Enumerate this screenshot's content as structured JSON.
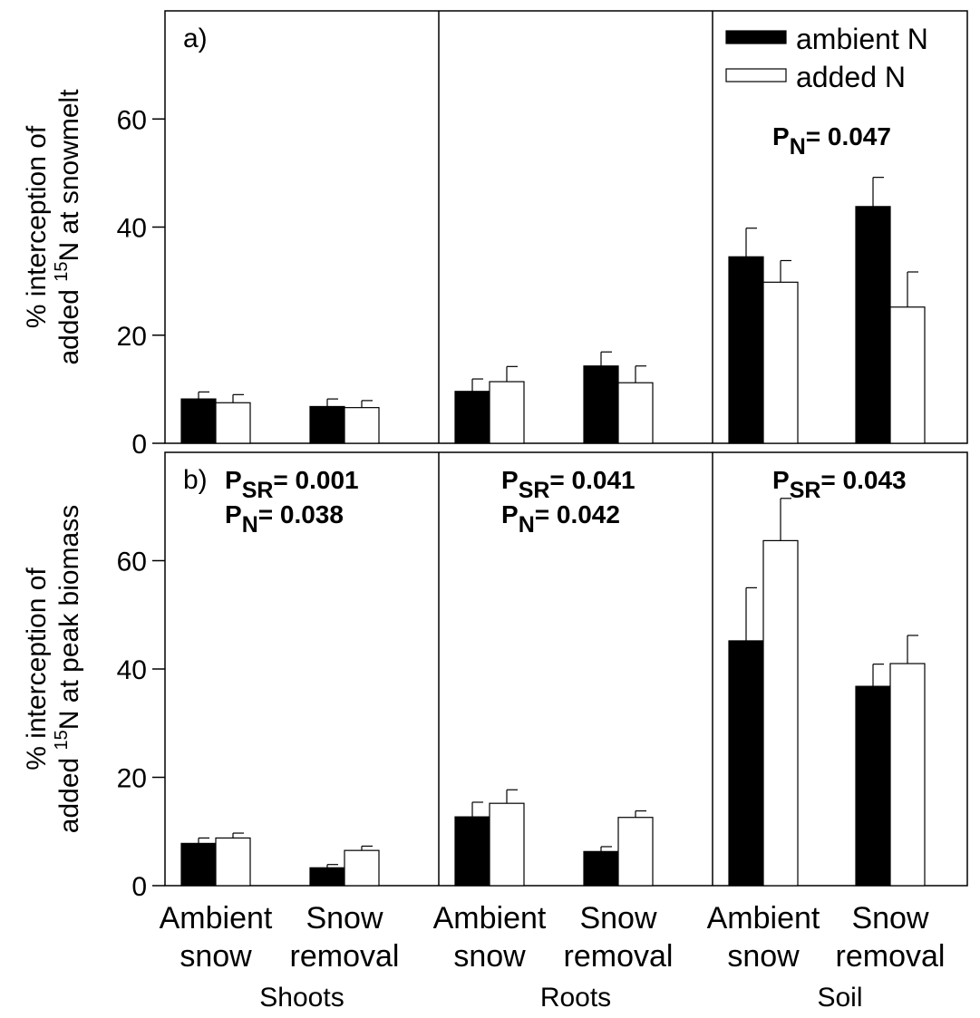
{
  "chart_data": {
    "type": "bar",
    "groups": [
      "Shoots",
      "Roots",
      "Soil"
    ],
    "categories": [
      [
        "Ambient",
        "snow"
      ],
      [
        "Snow",
        "removal"
      ]
    ],
    "series_names": [
      "ambient N",
      "added N"
    ],
    "colors": {
      "ambient_N": "#000000",
      "added_N": "#ffffff",
      "axis": "#000000"
    },
    "ylim": [
      0,
      80
    ],
    "yticks": [
      0,
      20,
      40,
      60
    ],
    "grid": false,
    "legend_position": "top-right of panel a",
    "panels": [
      {
        "id": "a",
        "letter": "a)",
        "ylabel_line1": "% interception of",
        "ylabel_line2_prefix": "added ",
        "ylabel_sup": "15",
        "ylabel_line2_suffix": "N at snowmelt",
        "annotations": [
          {
            "group": 2,
            "lines": [
              {
                "p": "P",
                "sub": "N",
                "val": "= 0.047"
              }
            ]
          }
        ],
        "data": [
          [
            {
              "ambient_N": 8.2,
              "ambient_N_err": 1.3,
              "added_N": 7.5,
              "added_N_err": 1.5
            },
            {
              "ambient_N": 6.8,
              "ambient_N_err": 1.4,
              "added_N": 6.6,
              "added_N_err": 1.3
            }
          ],
          [
            {
              "ambient_N": 9.6,
              "ambient_N_err": 2.3,
              "added_N": 11.4,
              "added_N_err": 2.8
            },
            {
              "ambient_N": 14.3,
              "ambient_N_err": 2.6,
              "added_N": 11.2,
              "added_N_err": 3.1
            }
          ],
          [
            {
              "ambient_N": 34.5,
              "ambient_N_err": 5.3,
              "added_N": 29.8,
              "added_N_err": 4.0
            },
            {
              "ambient_N": 43.8,
              "ambient_N_err": 5.4,
              "added_N": 25.2,
              "added_N_err": 6.5
            }
          ]
        ]
      },
      {
        "id": "b",
        "letter": "b)",
        "ylabel_line1": "% interception of",
        "ylabel_line2_prefix": "added ",
        "ylabel_sup": "15",
        "ylabel_line2_suffix": "N at peak biomass",
        "annotations": [
          {
            "group": 0,
            "lines": [
              {
                "p": "P",
                "sub": "SR",
                "val": "= 0.001"
              },
              {
                "p": "P",
                "sub": "N",
                "val": "= 0.038"
              }
            ]
          },
          {
            "group": 1,
            "lines": [
              {
                "p": "P",
                "sub": "SR",
                "val": "= 0.041"
              },
              {
                "p": "P",
                "sub": "N",
                "val": "= 0.042"
              }
            ]
          },
          {
            "group": 2,
            "lines": [
              {
                "p": "P",
                "sub": "SR",
                "val": "= 0.043"
              }
            ]
          }
        ],
        "data": [
          [
            {
              "ambient_N": 7.8,
              "ambient_N_err": 1.0,
              "added_N": 8.8,
              "added_N_err": 0.9
            },
            {
              "ambient_N": 3.3,
              "ambient_N_err": 0.6,
              "added_N": 6.5,
              "added_N_err": 0.8
            }
          ],
          [
            {
              "ambient_N": 12.7,
              "ambient_N_err": 2.7,
              "added_N": 15.2,
              "added_N_err": 2.5
            },
            {
              "ambient_N": 6.3,
              "ambient_N_err": 0.9,
              "added_N": 12.6,
              "added_N_err": 1.2
            }
          ],
          [
            {
              "ambient_N": 45.2,
              "ambient_N_err": 9.8,
              "added_N": 63.7,
              "added_N_err": 7.8
            },
            {
              "ambient_N": 36.8,
              "ambient_N_err": 4.1,
              "added_N": 41.0,
              "added_N_err": 5.2
            }
          ]
        ]
      }
    ]
  }
}
